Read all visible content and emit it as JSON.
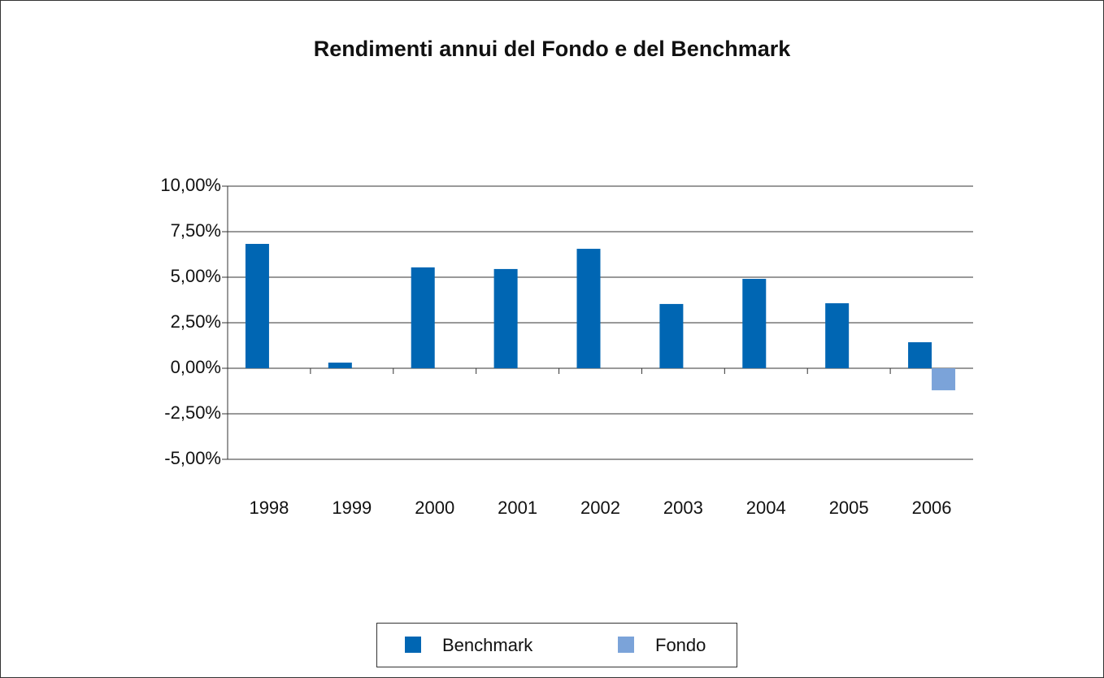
{
  "chart_data": {
    "type": "bar",
    "title": "Rendimenti annui del Fondo e del Benchmark",
    "categories": [
      "1998",
      "1999",
      "2000",
      "2001",
      "2002",
      "2003",
      "2004",
      "2005",
      "2006"
    ],
    "series": [
      {
        "name": "Benchmark",
        "color": "#0066b3",
        "values": [
          6.83,
          0.31,
          5.54,
          5.45,
          6.56,
          3.53,
          4.91,
          3.57,
          1.43
        ]
      },
      {
        "name": "Fondo",
        "color": "#7ba3d9",
        "values": [
          null,
          null,
          null,
          null,
          null,
          null,
          null,
          null,
          -1.21
        ]
      }
    ],
    "ylim": [
      -5,
      10
    ],
    "yticks": [
      {
        "value": -5,
        "label": "-5,00%"
      },
      {
        "value": -2.5,
        "label": "-2,50%"
      },
      {
        "value": 0,
        "label": "0,00%"
      },
      {
        "value": 2.5,
        "label": "2,50%"
      },
      {
        "value": 5,
        "label": "5,00%"
      },
      {
        "value": 7.5,
        "label": "7,50%"
      },
      {
        "value": 10,
        "label": "10,00%"
      }
    ],
    "grid": true,
    "legend": "bottom"
  }
}
